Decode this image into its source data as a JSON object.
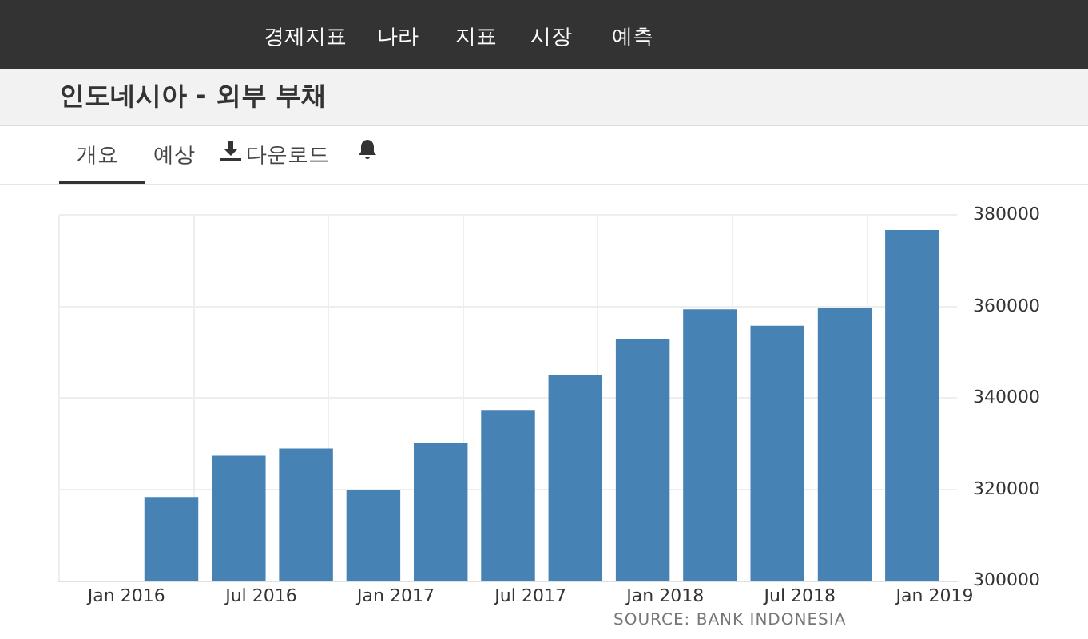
{
  "chart_data": {
    "type": "bar",
    "title": "인도네시아 - 외부 부채",
    "annotations": [
      "경제지표",
      "나라",
      "지표",
      "시장",
      "예측",
      "개요",
      "예상",
      "다운로드",
      "SOURCE: BANK INDONESIA"
    ],
    "x": [
      "2016-03",
      "2016-06",
      "2016-09",
      "2016-12",
      "2017-03",
      "2017-06",
      "2017-09",
      "2017-12",
      "2018-03",
      "2018-06",
      "2018-09",
      "2018-12"
    ],
    "values": [
      318400,
      327400,
      329000,
      320000,
      330200,
      337400,
      345100,
      353000,
      359400,
      355800,
      359700,
      376700
    ],
    "color": "#4682b4",
    "xlim": [
      "2015-10",
      "2019-02"
    ],
    "xticks": [
      {
        "value": "2016-01",
        "label": "Jan 2016"
      },
      {
        "value": "2016-07",
        "label": "Jul 2016"
      },
      {
        "value": "2017-01",
        "label": "Jan 2017"
      },
      {
        "value": "2017-07",
        "label": "Jul 2017"
      },
      {
        "value": "2018-01",
        "label": "Jan 2018"
      },
      {
        "value": "2018-07",
        "label": "Jul 2018"
      },
      {
        "value": "2019-01",
        "label": "Jan 2019"
      }
    ],
    "ylim": [
      300000,
      380000
    ],
    "yticks": [
      300000,
      320000,
      340000,
      360000,
      380000
    ],
    "grid": true
  }
}
